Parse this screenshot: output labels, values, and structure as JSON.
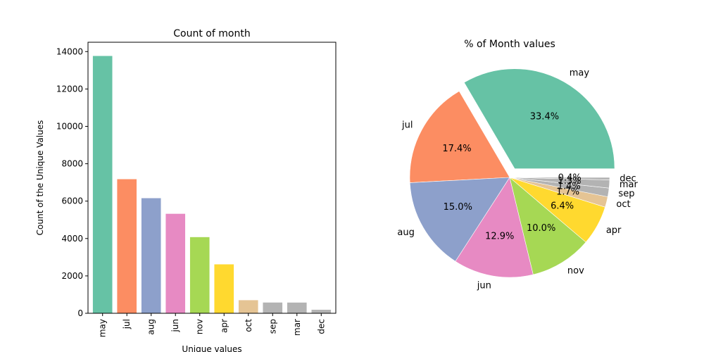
{
  "chart_data": [
    {
      "type": "bar",
      "title": "Count of month",
      "xlabel": "Unique values",
      "ylabel": "Count of the Unique Values",
      "categories": [
        "may",
        "jul",
        "aug",
        "jun",
        "nov",
        "apr",
        "oct",
        "sep",
        "mar",
        "dec"
      ],
      "values": [
        13766,
        7174,
        6158,
        5323,
        4074,
        2618,
        700,
        575,
        573,
        189
      ],
      "ylim": [
        0,
        14500
      ],
      "yticks": [
        "0",
        "2000",
        "4000",
        "6000",
        "8000",
        "10000",
        "12000",
        "14000"
      ],
      "colors": [
        "#66c2a5",
        "#fc8d62",
        "#8da0cb",
        "#e78ac3",
        "#a6d854",
        "#ffd92f",
        "#e5c494",
        "#b3b3b3",
        "#b3b3b3",
        "#b3b3b3"
      ],
      "grid": false,
      "legend": "none"
    },
    {
      "type": "pie",
      "title": "% of Month values",
      "labels": [
        "may",
        "jul",
        "aug",
        "jun",
        "nov",
        "apr",
        "oct",
        "sep",
        "mar",
        "dec"
      ],
      "percent_labels": [
        "33.4%",
        "17.4%",
        "15.0%",
        "12.9%",
        "10.0%",
        "6.4%",
        "1.7%",
        "1.4%",
        "1.3%",
        "0.4%"
      ],
      "values": [
        33.4,
        17.4,
        15.0,
        12.9,
        10.0,
        6.4,
        1.7,
        1.4,
        1.3,
        0.4
      ],
      "exploded": [
        "may"
      ],
      "colors": [
        "#66c2a5",
        "#fc8d62",
        "#8da0cb",
        "#e78ac3",
        "#a6d854",
        "#ffd92f",
        "#e5c494",
        "#b3b3b3",
        "#b3b3b3",
        "#b3b3b3"
      ],
      "legend": "none"
    }
  ]
}
